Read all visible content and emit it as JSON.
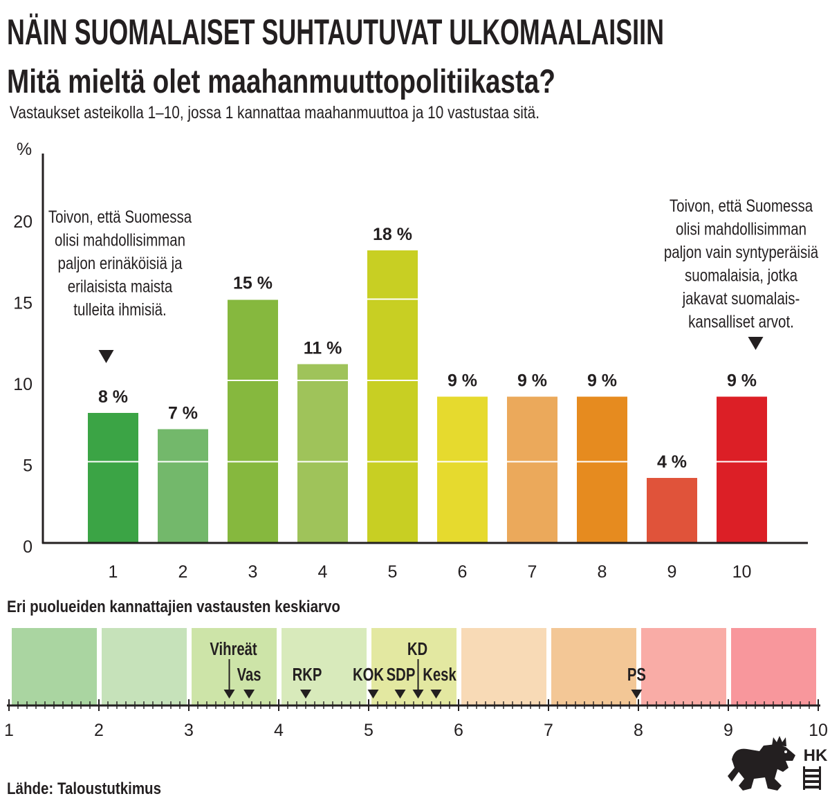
{
  "headline": "NÄIN SUOMALAISET SUHTAUTUVAT ULKOMAALAISIIN",
  "source": "Lähde: Taloustutkimus",
  "logo_text": "HK",
  "chart_data": [
    {
      "type": "bar",
      "title": "Mitä mieltä olet maahanmuuttopolitiikasta?",
      "subtitle": "Vastaukset asteikolla 1–10, jossa 1 kannattaa maahanmuuttoa ja 10 vastustaa sitä.",
      "ylabel": "%",
      "ylim": [
        0,
        24
      ],
      "yticks": [
        "0",
        "5",
        "10",
        "15",
        "20"
      ],
      "grid": true,
      "categories": [
        "1",
        "2",
        "3",
        "4",
        "5",
        "6",
        "7",
        "8",
        "9",
        "10"
      ],
      "values": [
        8,
        7,
        15,
        11,
        18,
        9,
        9,
        9,
        4,
        9
      ],
      "value_labels": [
        "8 %",
        "7 %",
        "15 %",
        "11 %",
        "18 %",
        "9 %",
        "9 %",
        "9 %",
        "4 %",
        "9 %"
      ],
      "bar_colors": [
        "#3ba445",
        "#73b86b",
        "#86b83e",
        "#9fc35a",
        "#c8cf23",
        "#e6da2e",
        "#eba95b",
        "#e68b1f",
        "#e0533a",
        "#dc1f26"
      ],
      "annotations": [
        {
          "category": 1,
          "lines": [
            "Toivon, että Suomessa",
            "olisi mahdollisimman",
            "paljon erinäköisiä ja",
            "erilaisista maista",
            "tulleita ihmisiä."
          ]
        },
        {
          "category": 10,
          "lines": [
            "Toivon, että Suomessa",
            "olisi mahdollisimman",
            "paljon vain syntyperäisiä",
            "suomalaisia, jotka",
            "jakavat suomalais-",
            "kansalliset arvot."
          ]
        }
      ]
    },
    {
      "type": "scatter",
      "title": "Eri puolueiden kannattajien vastausten keskiarvo",
      "xlim": [
        1,
        10
      ],
      "xticks": [
        "1",
        "2",
        "3",
        "4",
        "5",
        "6",
        "7",
        "8",
        "9",
        "10"
      ],
      "band_colors": [
        "#aad5a1",
        "#c6e2ba",
        "#cde4a8",
        "#d8eabb",
        "#e3e8a1",
        "#f8dab6",
        "#f3c796",
        "#f9aca6",
        "#f8979c"
      ],
      "points": [
        {
          "label": "Vihreät",
          "x": 3.45
        },
        {
          "label": "Vas",
          "x": 3.67
        },
        {
          "label": "RKP",
          "x": 4.3
        },
        {
          "label": "KOK",
          "x": 5.05
        },
        {
          "label": "SDP",
          "x": 5.35
        },
        {
          "label": "KD",
          "x": 5.55
        },
        {
          "label": "Kesk",
          "x": 5.75
        },
        {
          "label": "PS",
          "x": 7.98
        }
      ]
    }
  ]
}
